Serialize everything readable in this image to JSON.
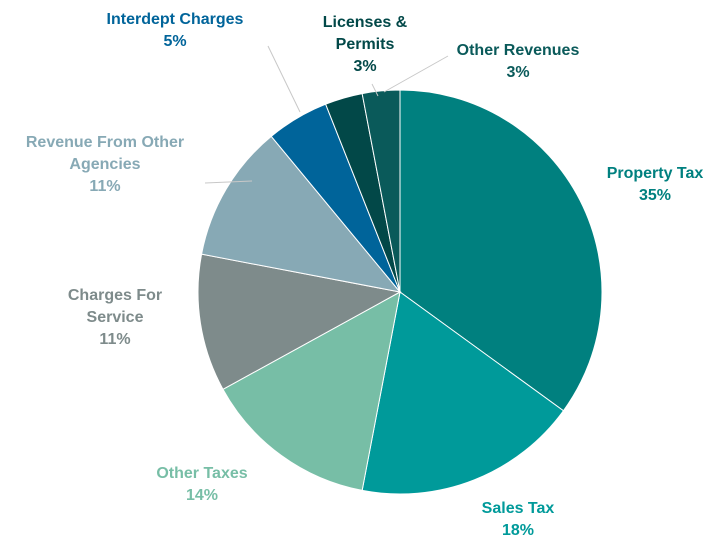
{
  "chart_data": {
    "type": "pie",
    "categories": [
      "Property Tax",
      "Sales Tax",
      "Other Taxes",
      "Charges For Service",
      "Revenue From Other Agencies",
      "Interdept Charges",
      "Licenses & Permits",
      "Other Revenues"
    ],
    "values": [
      35,
      18,
      14,
      11,
      11,
      5,
      3,
      3
    ],
    "value_labels": [
      "35%",
      "18%",
      "14%",
      "11%",
      "11%",
      "5%",
      "3%",
      "3%"
    ],
    "colors": [
      "#00807f",
      "#009a9a",
      "#77bea6",
      "#7e8b8b",
      "#87a9b5",
      "#00649a",
      "#024848",
      "#0a5a5a"
    ]
  }
}
